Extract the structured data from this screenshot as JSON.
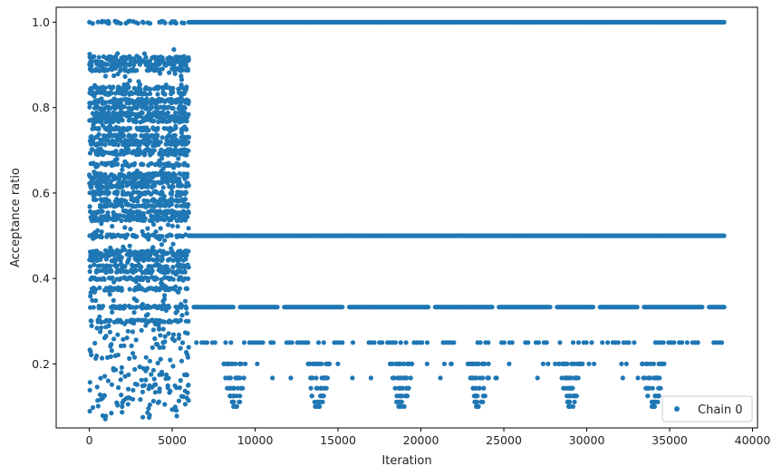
{
  "chart_data": {
    "type": "scatter",
    "title": "",
    "xlabel": "Iteration",
    "ylabel": "Acceptance ratio",
    "xlim": [
      -2000,
      40300
    ],
    "ylim": [
      0.05,
      1.035
    ],
    "xticks": [
      0,
      5000,
      10000,
      15000,
      20000,
      25000,
      30000,
      35000,
      40000
    ],
    "xtick_labels": [
      "0",
      "5000",
      "10000",
      "15000",
      "20000",
      "25000",
      "30000",
      "35000",
      "40000"
    ],
    "yticks": [
      0.2,
      0.4,
      0.6,
      0.8,
      1.0
    ],
    "ytick_labels": [
      "0.2",
      "0.4",
      "0.6",
      "0.8",
      "1.0"
    ],
    "grid": false,
    "legend_position": "bottom-right",
    "color": "#1f77b4",
    "series": [
      {
        "name": "Chain 0",
        "marker": "circle",
        "phases": [
          {
            "x_range": [
              0,
              6000
            ],
            "dense_levels": [
              0.3,
              0.333,
              0.375,
              0.4,
              0.417,
              0.429,
              0.444,
              0.455,
              0.462,
              0.5,
              0.538,
              0.545,
              0.556,
              0.571,
              0.583,
              0.6,
              0.615,
              0.625,
              0.636,
              0.643,
              0.667,
              0.692,
              0.7,
              0.714,
              0.722,
              0.733,
              0.75,
              0.769,
              0.778,
              0.786,
              0.8,
              0.812,
              0.818,
              0.833,
              0.846,
              0.889,
              0.9,
              0.909,
              0.917,
              1.0
            ],
            "sparse_range": [
              0.07,
              0.94
            ]
          },
          {
            "x_range": [
              6000,
              38300
            ],
            "dense_levels": [
              1.0,
              0.5
            ],
            "gapped_levels": [
              0.333,
              0.25
            ],
            "clustered_levels": [
              0.2,
              0.167,
              0.143,
              0.125,
              0.111,
              0.1
            ],
            "cluster_centers": [
              8800,
              13800,
              18800,
              23500,
              29000,
              34000
            ]
          }
        ]
      }
    ]
  }
}
